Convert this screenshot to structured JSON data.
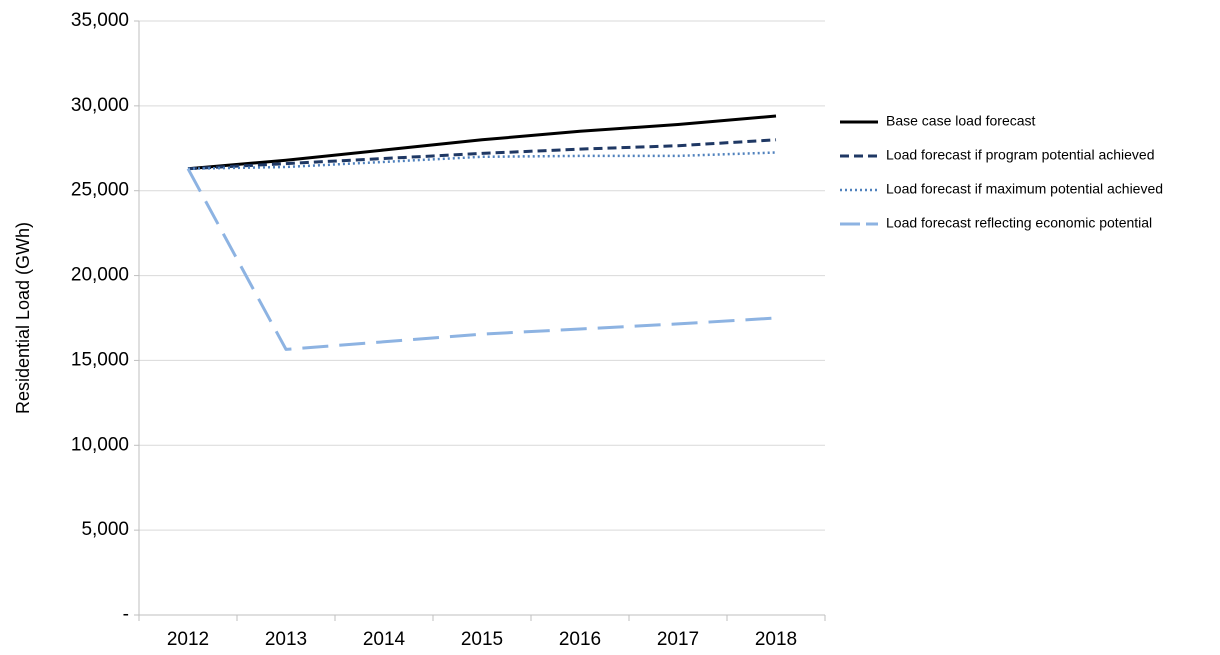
{
  "chart_data": {
    "type": "line",
    "title": "",
    "xlabel": "",
    "ylabel": "Residential Load (GWh)",
    "categories": [
      "2012",
      "2013",
      "2014",
      "2015",
      "2016",
      "2017",
      "2018"
    ],
    "ylim": [
      0,
      35000
    ],
    "yticks": [
      0,
      5000,
      10000,
      15000,
      20000,
      25000,
      30000,
      35000
    ],
    "ytick_labels": [
      "-",
      "5,000",
      "10,000",
      "15,000",
      "20,000",
      "25,000",
      "30,000",
      "35,000"
    ],
    "grid": true,
    "legend_position": "right",
    "series": [
      {
        "name": "Base case load forecast",
        "color": "#000000",
        "dash": "solid",
        "values": [
          26300,
          26800,
          27400,
          28000,
          28500,
          28900,
          29400
        ]
      },
      {
        "name": "Load forecast if program potential achieved",
        "color": "#1f3864",
        "dash": "dash",
        "values": [
          26300,
          26600,
          26900,
          27200,
          27450,
          27650,
          28000
        ]
      },
      {
        "name": "Load forecast if maximum potential achieved",
        "color": "#4f81bd",
        "dash": "dot",
        "values": [
          26300,
          26400,
          26700,
          27000,
          27050,
          27050,
          27250
        ]
      },
      {
        "name": "Load forecast reflecting economic potential",
        "color": "#8db3e2",
        "dash": "longdash",
        "values": [
          26300,
          15650,
          16100,
          16550,
          16850,
          17150,
          17500
        ]
      }
    ]
  }
}
